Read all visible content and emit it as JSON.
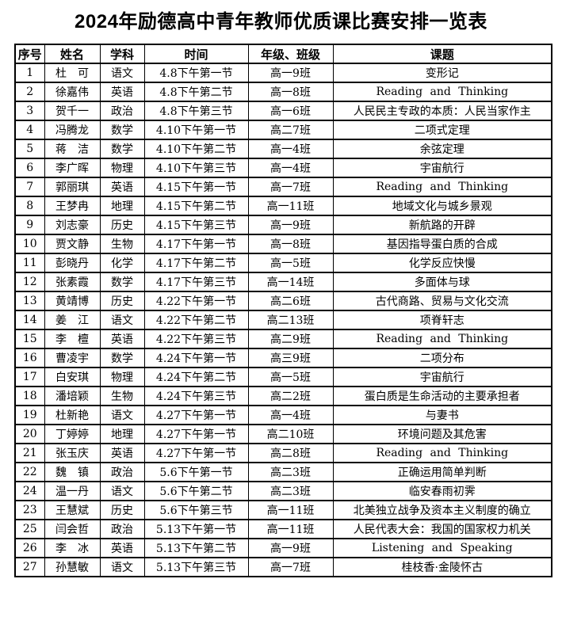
{
  "title": "2024年励德高中青年教师优质课比赛安排一览表",
  "table": {
    "headers": [
      "序号",
      "姓名",
      "学科",
      "时间",
      "年级、班级",
      "课题"
    ],
    "column_keys": [
      "no",
      "name",
      "subject",
      "time",
      "class",
      "topic"
    ],
    "rows": [
      [
        "1",
        "杜　可",
        "语文",
        "4.8下午第一节",
        "高一9班",
        "变形记"
      ],
      [
        "2",
        "徐嘉伟",
        "英语",
        "4.8下午第二节",
        "高一8班",
        "Reading and Thinking"
      ],
      [
        "3",
        "贺千一",
        "政治",
        "4.8下午第三节",
        "高一6班",
        "人民民主专政的本质：人民当家作主"
      ],
      [
        "4",
        "冯腾龙",
        "数学",
        "4.10下午第一节",
        "高二7班",
        "二项式定理"
      ],
      [
        "5",
        "蒋　洁",
        "数学",
        "4.10下午第二节",
        "高一4班",
        "余弦定理"
      ],
      [
        "6",
        "李广晖",
        "物理",
        "4.10下午第三节",
        "高一4班",
        "宇宙航行"
      ],
      [
        "7",
        "郭丽琪",
        "英语",
        "4.15下午第一节",
        "高一7班",
        "Reading and Thinking"
      ],
      [
        "8",
        "王梦冉",
        "地理",
        "4.15下午第二节",
        "高一11班",
        "地域文化与城乡景观"
      ],
      [
        "9",
        "刘志豪",
        "历史",
        "4.15下午第三节",
        "高一9班",
        "新航路的开辟"
      ],
      [
        "10",
        "贾文静",
        "生物",
        "4.17下午第一节",
        "高一8班",
        "基因指导蛋白质的合成"
      ],
      [
        "11",
        "彭晓丹",
        "化学",
        "4.17下午第二节",
        "高一5班",
        "化学反应快慢"
      ],
      [
        "12",
        "张素霞",
        "数学",
        "4.17下午第三节",
        "高一14班",
        "多面体与球"
      ],
      [
        "13",
        "黄靖博",
        "历史",
        "4.22下午第一节",
        "高二6班",
        "古代商路、贸易与文化交流"
      ],
      [
        "14",
        "姜　江",
        "语文",
        "4.22下午第二节",
        "高二13班",
        "项脊轩志"
      ],
      [
        "15",
        "李　檀",
        "英语",
        "4.22下午第三节",
        "高二9班",
        "Reading and Thinking"
      ],
      [
        "16",
        "曹凌宇",
        "数学",
        "4.24下午第一节",
        "高三9班",
        "二项分布"
      ],
      [
        "17",
        "白安琪",
        "物理",
        "4.24下午第二节",
        "高一5班",
        "宇宙航行"
      ],
      [
        "18",
        "潘培颖",
        "生物",
        "4.24下午第三节",
        "高二2班",
        "蛋白质是生命活动的主要承担者"
      ],
      [
        "19",
        "杜新艳",
        "语文",
        "4.27下午第一节",
        "高一4班",
        "与妻书"
      ],
      [
        "20",
        "丁婷婷",
        "地理",
        "4.27下午第一节",
        "高二10班",
        "环境问题及其危害"
      ],
      [
        "21",
        "张玉庆",
        "英语",
        "4.27下午第一节",
        "高二8班",
        "Reading and Thinking"
      ],
      [
        "22",
        "魏　镇",
        "政治",
        "5.6下午第一节",
        "高二3班",
        "正确运用简单判断"
      ],
      [
        "24",
        "温一丹",
        "语文",
        "5.6下午第二节",
        "高二3班",
        "临安春雨初霁"
      ],
      [
        "23",
        "王慧斌",
        "历史",
        "5.6下午第三节",
        "高一11班",
        "北美独立战争及资本主义制度的确立"
      ],
      [
        "25",
        "闫会哲",
        "政治",
        "5.13下午第一节",
        "高一11班",
        "人民代表大会：我国的国家权力机关"
      ],
      [
        "26",
        "李　冰",
        "英语",
        "5.13下午第二节",
        "高一9班",
        "Listening and Speaking"
      ],
      [
        "27",
        "孙慧敏",
        "语文",
        "5.13下午第三节",
        "高一7班",
        "桂枝香·金陵怀古"
      ]
    ]
  },
  "colors": {
    "text": "#000000",
    "background": "#ffffff",
    "border": "#000000"
  }
}
